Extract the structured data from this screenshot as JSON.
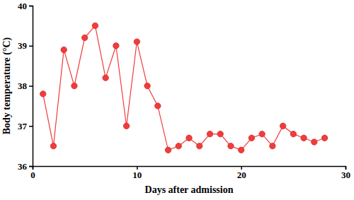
{
  "chart_data": {
    "type": "line",
    "xlabel": "Days after admission",
    "ylabel": "Body temperature (°C)",
    "x": [
      1,
      2,
      3,
      4,
      5,
      6,
      7,
      8,
      9,
      10,
      11,
      12,
      13,
      14,
      15,
      16,
      17,
      18,
      19,
      20,
      21,
      22,
      23,
      24,
      25,
      26,
      27,
      28
    ],
    "values": [
      37.8,
      36.5,
      38.9,
      38.0,
      39.2,
      39.5,
      38.2,
      39.0,
      37.0,
      39.1,
      38.0,
      37.5,
      36.4,
      36.5,
      36.7,
      36.5,
      36.8,
      36.8,
      36.5,
      36.4,
      36.7,
      36.8,
      36.5,
      37.0,
      36.8,
      36.7,
      36.6,
      36.7
    ],
    "color": "#f03c3c",
    "marker": "circle",
    "xlim": [
      0,
      30
    ],
    "xticks": [
      0,
      10,
      20,
      30
    ],
    "ylim": [
      36,
      40
    ],
    "yticks": [
      36,
      37,
      38,
      39,
      40
    ],
    "grid": false
  }
}
